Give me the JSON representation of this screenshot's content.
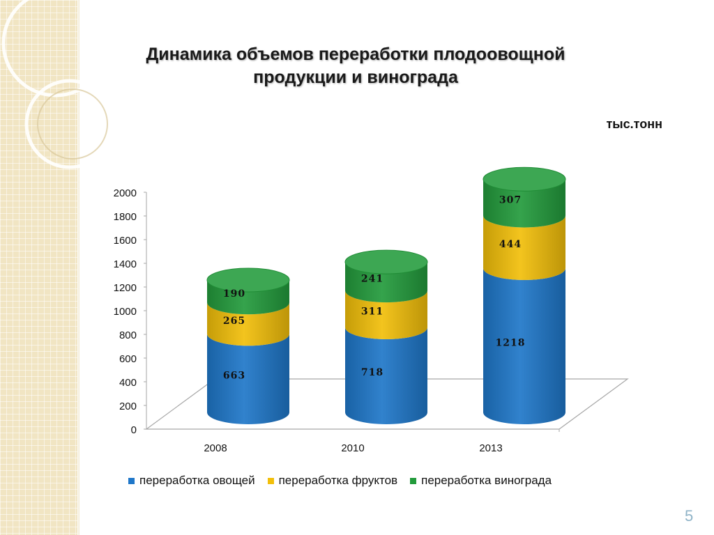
{
  "slide": {
    "title_line1": "Динамика объемов переработки плодоовощной",
    "title_line2": "продукции и винограда",
    "unit": "тыс.тонн",
    "page_number": "5"
  },
  "colors": {
    "vegetables": "#1f77c9",
    "fruits": "#f2bf0a",
    "grapes": "#239b3c"
  },
  "chart_data": {
    "type": "bar",
    "stacked": true,
    "style": "3d-cylinder",
    "categories": [
      "2008",
      "2010",
      "2013"
    ],
    "series": [
      {
        "name": "переработка овощей",
        "values": [
          663,
          718,
          1218
        ],
        "color": "#1f77c9"
      },
      {
        "name": "переработка фруктов",
        "values": [
          265,
          311,
          444
        ],
        "color": "#f2bf0a"
      },
      {
        "name": "переработка винограда",
        "values": [
          190,
          241,
          307
        ],
        "color": "#239b3c"
      }
    ],
    "yticks": [
      "0",
      "200",
      "400",
      "600",
      "800",
      "1000",
      "1200",
      "1400",
      "1600",
      "1800",
      "2000"
    ],
    "ylim": [
      0,
      2000
    ],
    "title": "",
    "xlabel": "",
    "ylabel": "",
    "legend_position": "bottom",
    "grid": false
  }
}
